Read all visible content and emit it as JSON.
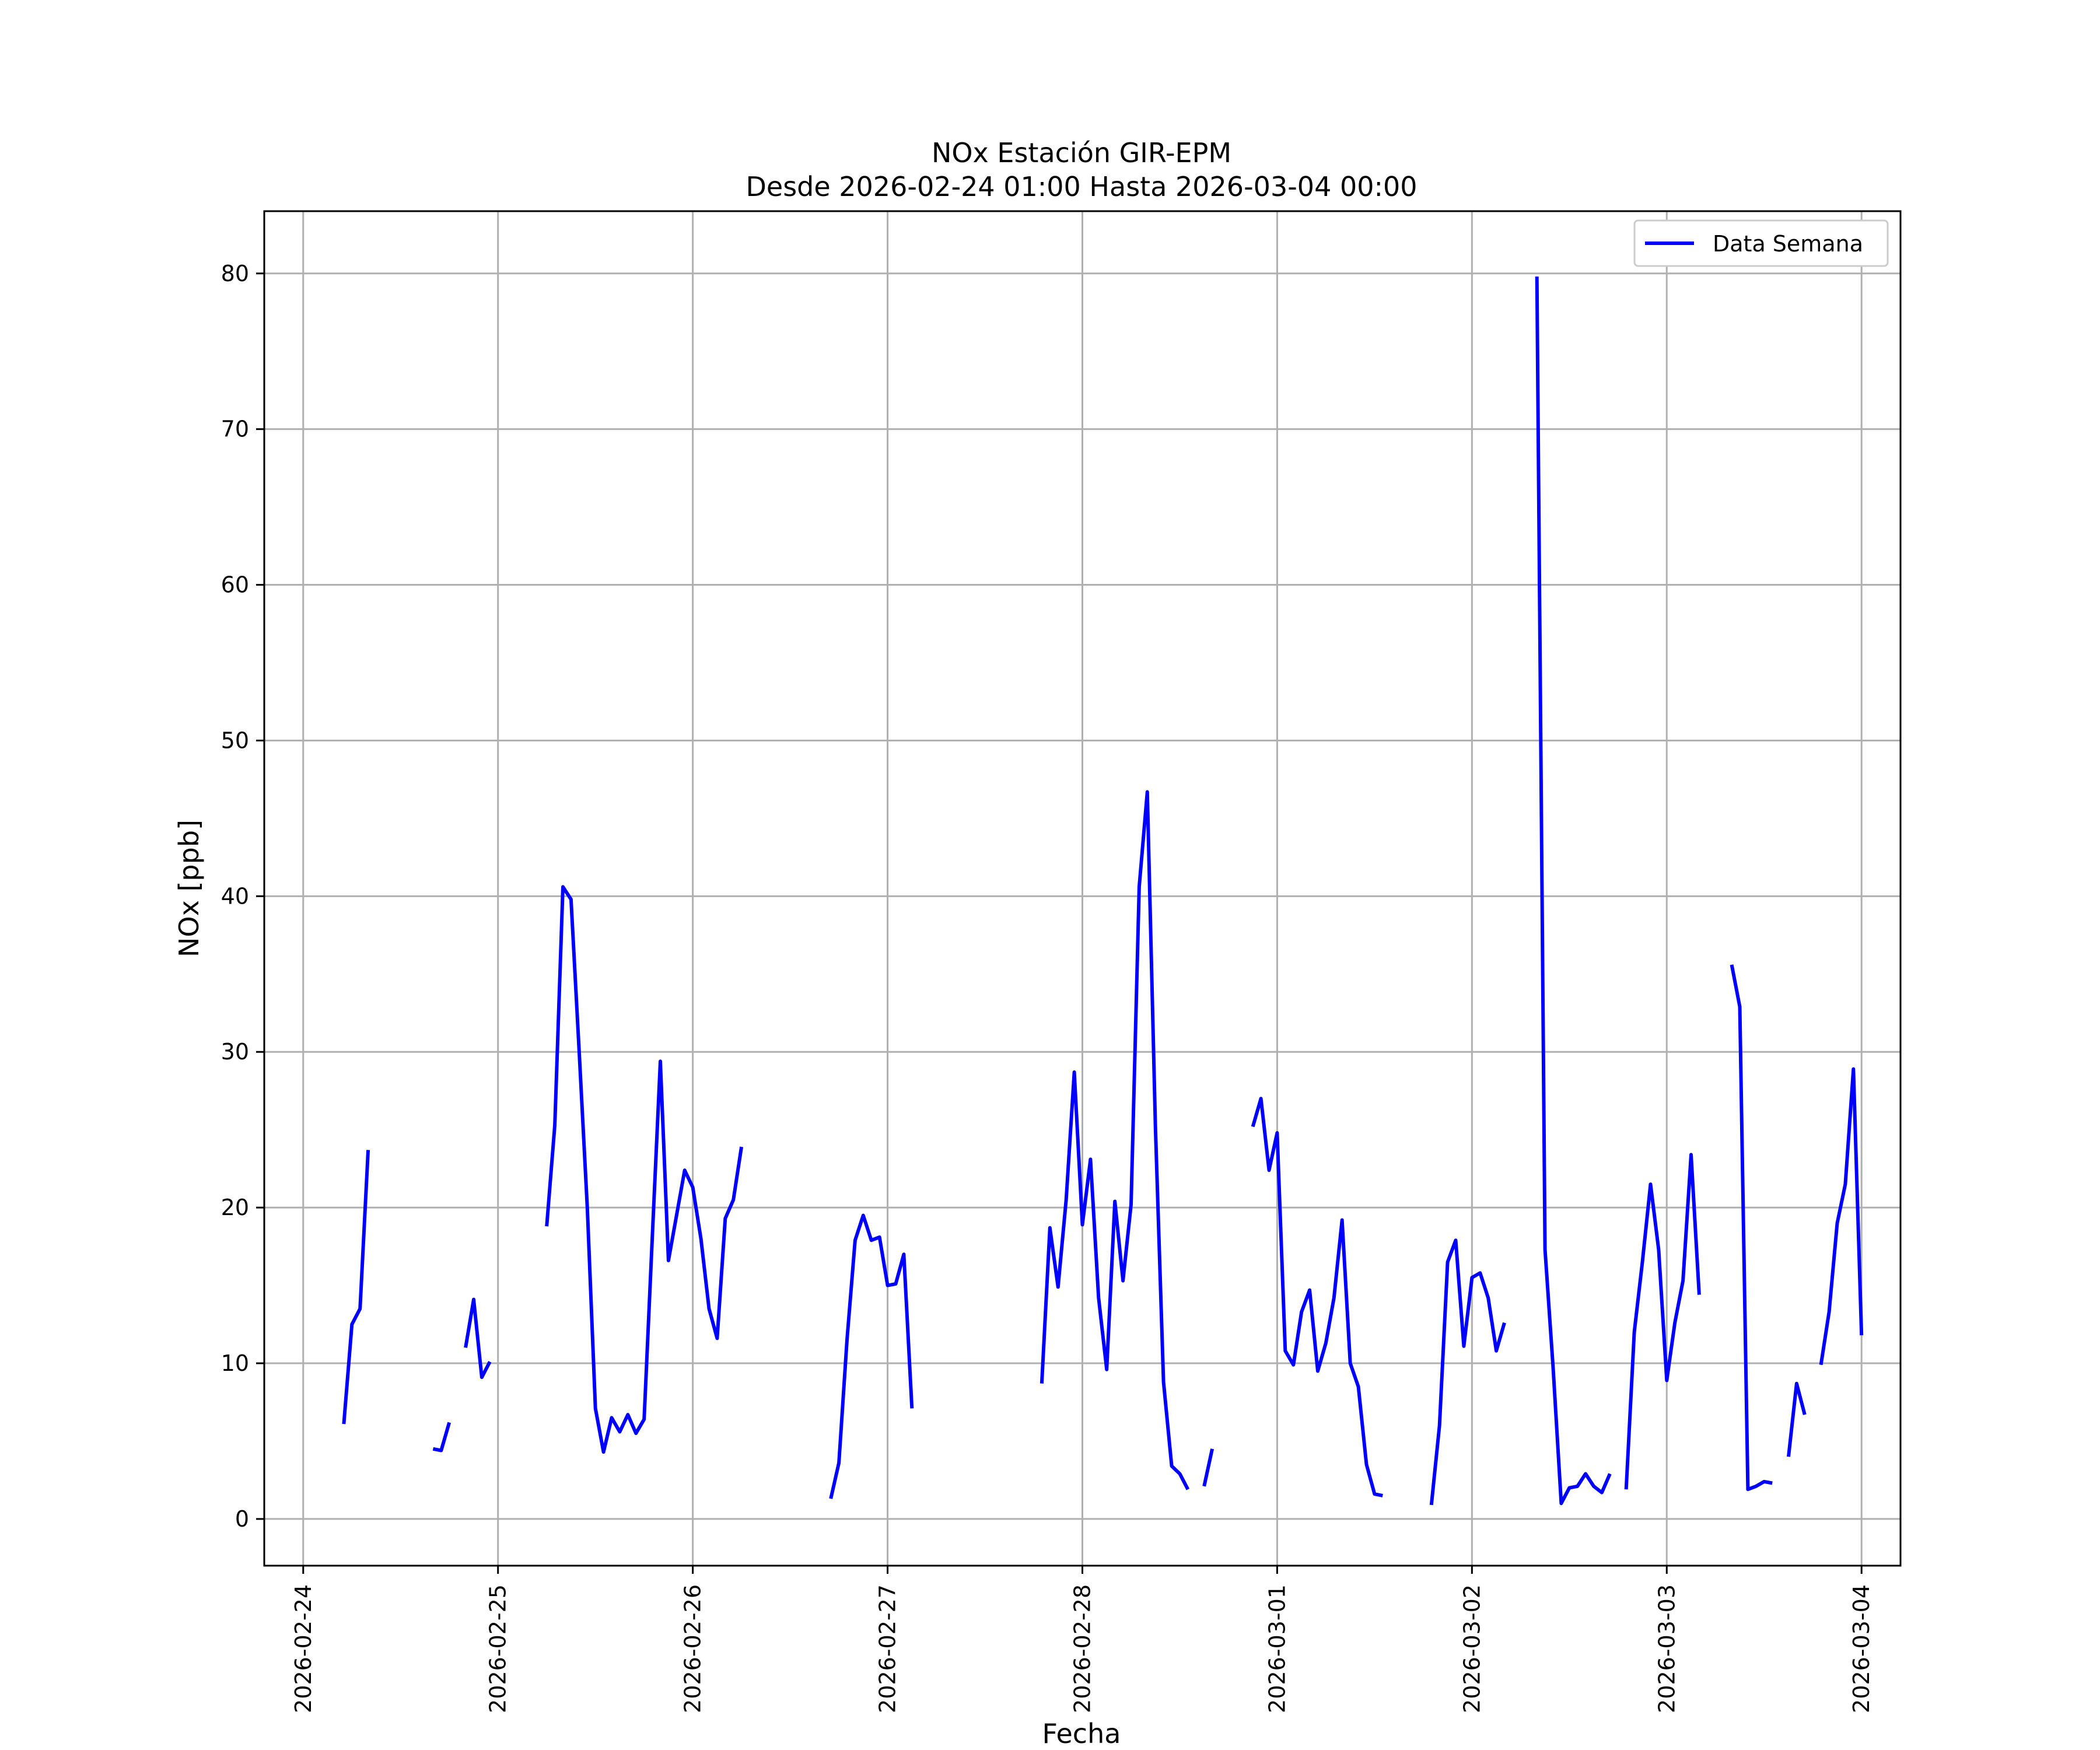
{
  "chart_data": {
    "type": "line",
    "title": "NOx Estación GIR-EPM",
    "subtitle": "Desde 2026-02-24 01:00 Hasta 2026-03-04 00:00",
    "xlabel": "Fecha",
    "ylabel": "NOx [ppb]",
    "ylim": [
      -3,
      84
    ],
    "xlim": [
      "2026-02-23 19:12",
      "2026-03-04 04:48"
    ],
    "yticks": [
      "0",
      "10",
      "20",
      "30",
      "40",
      "50",
      "60",
      "70",
      "80"
    ],
    "xticks": [
      "2026-02-24",
      "2026-02-25",
      "2026-02-26",
      "2026-02-27",
      "2026-02-28",
      "2026-03-01",
      "2026-03-02",
      "2026-03-03",
      "2026-03-04"
    ],
    "grid": true,
    "legend": {
      "position": "top-right",
      "entries": [
        "Data Semana"
      ]
    },
    "series": [
      {
        "name": "Data Semana",
        "color": "#0000ff",
        "segments": [
          [
            [
              "2026-02-24 05:00",
              6.1
            ],
            [
              "2026-02-24 06:00",
              12.5
            ],
            [
              "2026-02-24 07:00",
              13.5
            ],
            [
              "2026-02-24 08:00",
              23.7
            ]
          ],
          [
            [
              "2026-02-24 16:00",
              4.5
            ],
            [
              "2026-02-24 17:00",
              4.4
            ],
            [
              "2026-02-24 18:00",
              6.2
            ]
          ],
          [
            [
              "2026-02-24 20:00",
              11.0
            ],
            [
              "2026-02-24 21:00",
              14.1
            ],
            [
              "2026-02-24 22:00",
              9.1
            ],
            [
              "2026-02-24 23:00",
              10.1
            ]
          ],
          [
            [
              "2026-02-25 06:00",
              18.8
            ],
            [
              "2026-02-25 07:00",
              25.3
            ],
            [
              "2026-02-25 08:00",
              40.6
            ],
            [
              "2026-02-25 09:00",
              39.8
            ],
            [
              "2026-02-25 10:00",
              30.0
            ],
            [
              "2026-02-25 11:00",
              20.0
            ],
            [
              "2026-02-25 12:00",
              7.1
            ],
            [
              "2026-02-25 13:00",
              4.3
            ],
            [
              "2026-02-25 14:00",
              6.5
            ],
            [
              "2026-02-25 15:00",
              5.6
            ],
            [
              "2026-02-25 16:00",
              6.7
            ],
            [
              "2026-02-25 17:00",
              5.5
            ],
            [
              "2026-02-25 18:00",
              6.4
            ],
            [
              "2026-02-25 19:00",
              18.0
            ],
            [
              "2026-02-25 20:00",
              29.4
            ],
            [
              "2026-02-25 21:00",
              16.6
            ],
            [
              "2026-02-25 22:00",
              19.5
            ],
            [
              "2026-02-25 23:00",
              22.4
            ],
            [
              "2026-02-26 00:00",
              21.3
            ],
            [
              "2026-02-26 01:00",
              18.0
            ],
            [
              "2026-02-26 02:00",
              13.5
            ],
            [
              "2026-02-26 03:00",
              11.6
            ],
            [
              "2026-02-26 04:00",
              19.3
            ],
            [
              "2026-02-26 05:00",
              20.5
            ],
            [
              "2026-02-26 06:00",
              23.9
            ]
          ],
          [
            [
              "2026-02-26 17:00",
              1.3
            ],
            [
              "2026-02-26 18:00",
              3.6
            ],
            [
              "2026-02-26 19:00",
              11.5
            ],
            [
              "2026-02-26 20:00",
              17.9
            ],
            [
              "2026-02-26 21:00",
              19.5
            ],
            [
              "2026-02-26 22:00",
              17.9
            ],
            [
              "2026-02-26 23:00",
              18.1
            ],
            [
              "2026-02-27 00:00",
              15.0
            ],
            [
              "2026-02-27 01:00",
              15.1
            ],
            [
              "2026-02-27 02:00",
              17.0
            ],
            [
              "2026-02-27 03:00",
              7.1
            ]
          ],
          [
            [
              "2026-02-27 19:00",
              8.7
            ],
            [
              "2026-02-27 20:00",
              18.7
            ],
            [
              "2026-02-27 21:00",
              14.9
            ],
            [
              "2026-02-27 22:00",
              20.5
            ],
            [
              "2026-02-27 23:00",
              28.7
            ],
            [
              "2026-02-28 00:00",
              18.9
            ],
            [
              "2026-02-28 01:00",
              23.1
            ],
            [
              "2026-02-28 02:00",
              14.2
            ],
            [
              "2026-02-28 03:00",
              9.6
            ],
            [
              "2026-02-28 04:00",
              20.4
            ],
            [
              "2026-02-28 05:00",
              15.3
            ],
            [
              "2026-02-28 06:00",
              20.2
            ],
            [
              "2026-02-28 07:00",
              40.6
            ],
            [
              "2026-02-28 08:00",
              46.7
            ],
            [
              "2026-02-28 09:00",
              25.2
            ],
            [
              "2026-02-28 10:00",
              8.8
            ],
            [
              "2026-02-28 11:00",
              3.4
            ],
            [
              "2026-02-28 12:00",
              2.9
            ],
            [
              "2026-02-28 13:00",
              1.9
            ]
          ],
          [
            [
              "2026-02-28 15:00",
              2.1
            ],
            [
              "2026-02-28 16:00",
              4.5
            ]
          ],
          [
            [
              "2026-02-28 21:00",
              25.2
            ],
            [
              "2026-02-28 22:00",
              27.0
            ],
            [
              "2026-02-28 23:00",
              22.4
            ],
            [
              "2026-03-01 00:00",
              24.8
            ],
            [
              "2026-03-01 01:00",
              10.8
            ],
            [
              "2026-03-01 02:00",
              9.9
            ],
            [
              "2026-03-01 03:00",
              13.3
            ],
            [
              "2026-03-01 04:00",
              14.7
            ],
            [
              "2026-03-01 05:00",
              9.5
            ],
            [
              "2026-03-01 06:00",
              11.3
            ],
            [
              "2026-03-01 07:00",
              14.2
            ],
            [
              "2026-03-01 08:00",
              19.2
            ],
            [
              "2026-03-01 09:00",
              10.0
            ],
            [
              "2026-03-01 10:00",
              8.5
            ],
            [
              "2026-03-01 11:00",
              3.5
            ],
            [
              "2026-03-01 12:00",
              1.6
            ],
            [
              "2026-03-01 13:00",
              1.5
            ]
          ],
          [
            [
              "2026-03-01 19:00",
              0.9
            ],
            [
              "2026-03-01 20:00",
              6.0
            ],
            [
              "2026-03-01 21:00",
              16.5
            ],
            [
              "2026-03-01 22:00",
              17.9
            ],
            [
              "2026-03-01 23:00",
              11.1
            ],
            [
              "2026-03-02 00:00",
              15.5
            ],
            [
              "2026-03-02 01:00",
              15.8
            ],
            [
              "2026-03-02 02:00",
              14.2
            ],
            [
              "2026-03-02 03:00",
              10.8
            ],
            [
              "2026-03-02 04:00",
              12.6
            ]
          ],
          [
            [
              "2026-03-02 08:00",
              79.8
            ],
            [
              "2026-03-02 09:00",
              17.3
            ],
            [
              "2026-03-02 10:00",
              9.7
            ],
            [
              "2026-03-02 11:00",
              1.0
            ],
            [
              "2026-03-02 12:00",
              2.0
            ],
            [
              "2026-03-02 13:00",
              2.1
            ],
            [
              "2026-03-02 14:00",
              2.9
            ],
            [
              "2026-03-02 15:00",
              2.1
            ],
            [
              "2026-03-02 16:00",
              1.7
            ],
            [
              "2026-03-02 17:00",
              2.9
            ]
          ],
          [
            [
              "2026-03-02 19:00",
              1.9
            ],
            [
              "2026-03-02 20:00",
              12.0
            ],
            [
              "2026-03-02 21:00",
              16.5
            ],
            [
              "2026-03-02 22:00",
              21.5
            ],
            [
              "2026-03-02 23:00",
              17.3
            ],
            [
              "2026-03-03 00:00",
              8.9
            ],
            [
              "2026-03-03 01:00",
              12.6
            ],
            [
              "2026-03-03 02:00",
              15.3
            ],
            [
              "2026-03-03 03:00",
              23.4
            ],
            [
              "2026-03-03 04:00",
              14.4
            ]
          ],
          [
            [
              "2026-03-03 08:00",
              35.6
            ],
            [
              "2026-03-03 09:00",
              32.9
            ],
            [
              "2026-03-03 10:00",
              1.9
            ],
            [
              "2026-03-03 11:00",
              2.1
            ],
            [
              "2026-03-03 12:00",
              2.4
            ],
            [
              "2026-03-03 13:00",
              2.3
            ]
          ],
          [
            [
              "2026-03-03 15:00",
              4.0
            ],
            [
              "2026-03-03 16:00",
              8.7
            ],
            [
              "2026-03-03 17:00",
              6.7
            ]
          ],
          [
            [
              "2026-03-03 19:00",
              9.9
            ],
            [
              "2026-03-03 20:00",
              13.3
            ],
            [
              "2026-03-03 21:00",
              19.0
            ],
            [
              "2026-03-03 22:00",
              21.5
            ],
            [
              "2026-03-03 23:00",
              28.9
            ],
            [
              "2026-03-04 00:00",
              11.8
            ]
          ]
        ]
      }
    ]
  }
}
